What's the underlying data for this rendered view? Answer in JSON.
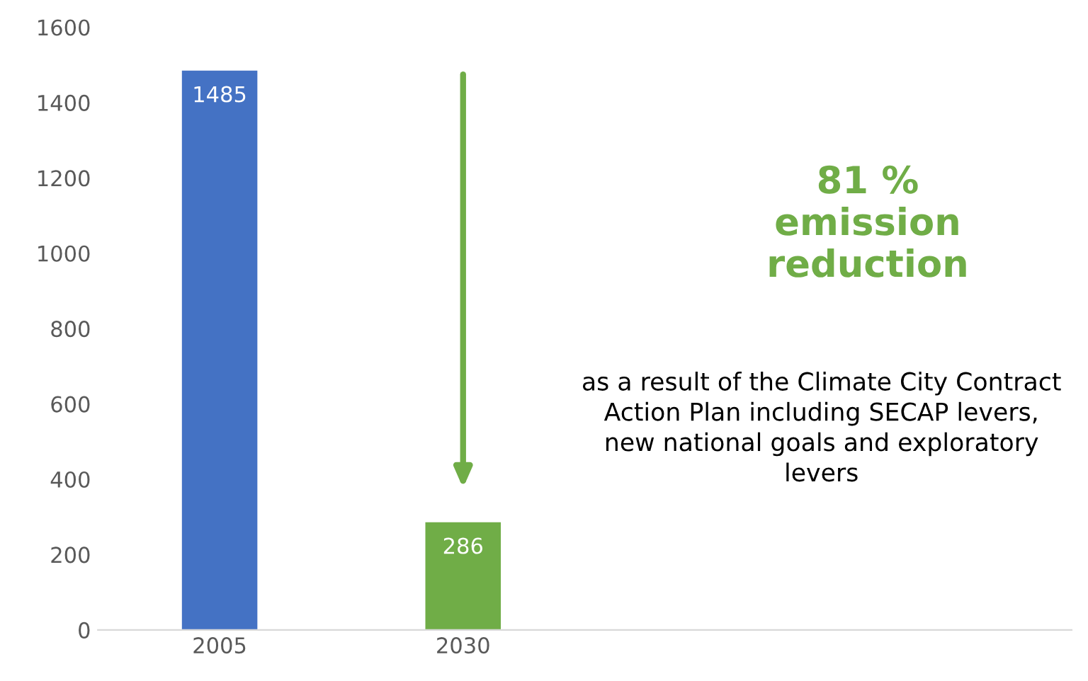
{
  "chart_data": {
    "type": "bar",
    "categories": [
      "2005",
      "2030",
      null,
      null
    ],
    "values": [
      1485,
      286,
      null,
      null
    ],
    "colors": [
      "#4472c4",
      "#70ad47",
      "#4472c4",
      "#4472c4"
    ],
    "ylim": [
      0,
      1600
    ],
    "yticks": [
      0,
      200,
      400,
      600,
      800,
      1000,
      1200,
      1400,
      1600
    ],
    "data_labels": true,
    "grid": false,
    "legend": false,
    "annotations": [
      "81 % emission reduction",
      "as a result of the Climate City Contract Action Plan including SECAP levers, new national goals and exploratory levers"
    ]
  }
}
